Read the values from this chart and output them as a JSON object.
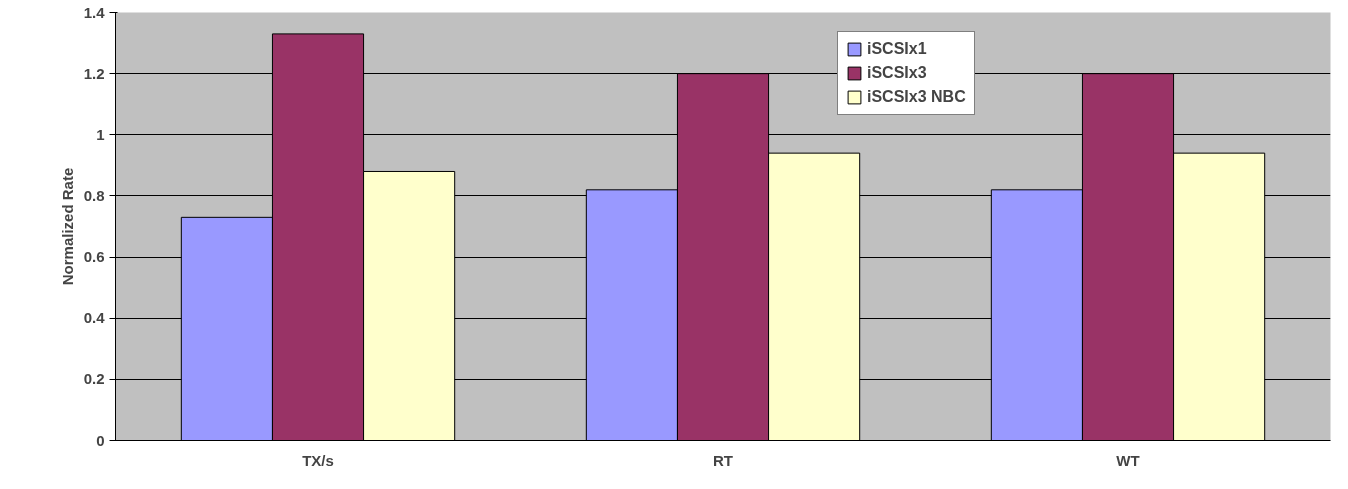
{
  "chart_data": {
    "type": "bar",
    "ylabel": "Normalized Rate",
    "categories": [
      "TX/s",
      "RT",
      "WT"
    ],
    "series": [
      {
        "name": "iSCSIx1",
        "color": "#9999ff",
        "values": [
          0.73,
          0.82,
          0.82
        ]
      },
      {
        "name": "iSCSIx3",
        "color": "#993366",
        "values": [
          1.33,
          1.2,
          1.2
        ]
      },
      {
        "name": "iSCSIx3 NBC",
        "color": "#ffffcc",
        "values": [
          0.88,
          0.94,
          0.94
        ]
      }
    ],
    "ylim": [
      0,
      1.4
    ],
    "yticks": [
      0,
      0.2,
      0.4,
      0.6,
      0.8,
      1,
      1.2,
      1.4
    ],
    "grid": "y",
    "legend": "top right"
  }
}
